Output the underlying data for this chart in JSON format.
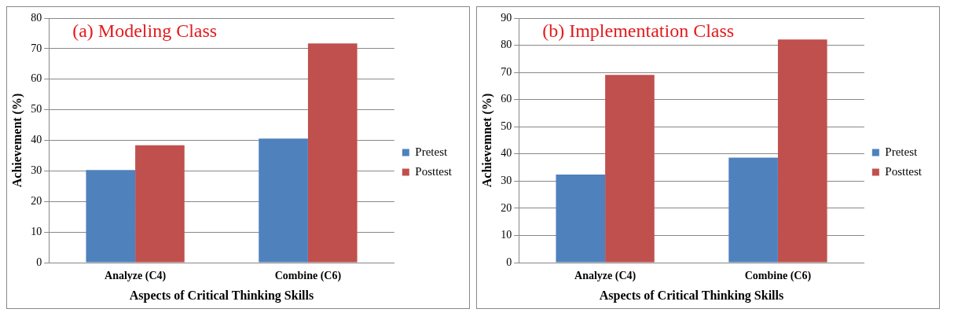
{
  "chart_data": [
    {
      "type": "bar",
      "title": "(a) Modeling Class",
      "xlabel": "Aspects of Critical Thinking Skills",
      "ylabel": "Achievement (%)",
      "categories": [
        "Analyze (C4)",
        "Combine (C6)"
      ],
      "series": [
        {
          "name": "Pretest",
          "color": "#4f81bd",
          "values": [
            30.3,
            40.6
          ]
        },
        {
          "name": "Posttest",
          "color": "#c0504d",
          "values": [
            38.4,
            71.7
          ]
        }
      ],
      "ylim": [
        0,
        80
      ],
      "yticks": [
        0,
        10,
        20,
        30,
        40,
        50,
        60,
        70,
        80
      ],
      "grid": "y",
      "legend": "right"
    },
    {
      "type": "bar",
      "title": "(b) Implementation Class",
      "xlabel": "Aspects of Critical Thinking Skills",
      "ylabel": "Achievemnet (%)",
      "categories": [
        "Analyze (C4)",
        "Combine (C6)"
      ],
      "series": [
        {
          "name": "Pretest",
          "color": "#4f81bd",
          "values": [
            32.4,
            38.6
          ]
        },
        {
          "name": "Posttest",
          "color": "#c0504d",
          "values": [
            69.1,
            82.1
          ]
        }
      ],
      "ylim": [
        0,
        90
      ],
      "yticks": [
        0,
        10,
        20,
        30,
        40,
        50,
        60,
        70,
        80,
        90
      ],
      "grid": "y",
      "legend": "right"
    }
  ]
}
